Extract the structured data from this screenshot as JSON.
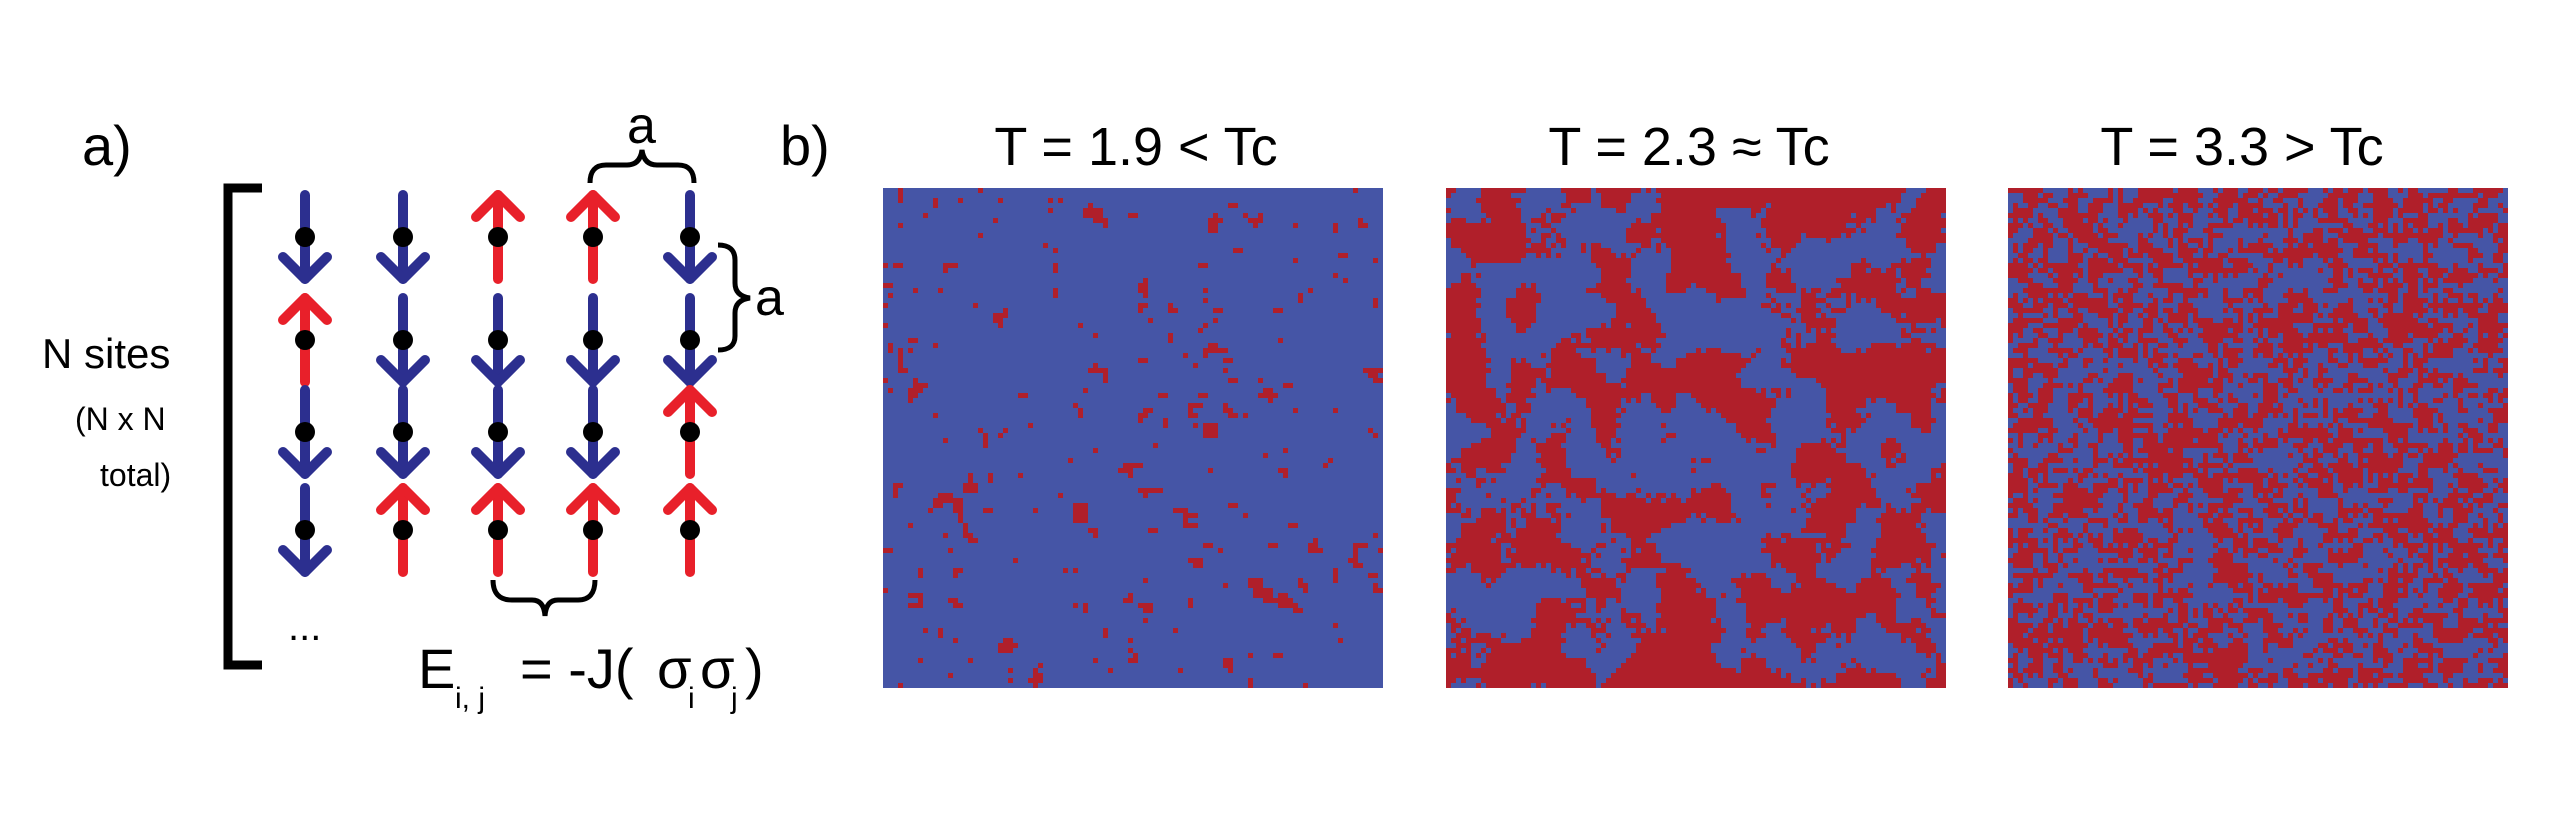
{
  "panel_a": {
    "label": "a)",
    "sites_label": "N sites",
    "total_label_line1": "(N x N",
    "total_label_line2": "total)",
    "ellipsis": "...",
    "spacing_label_top": "a",
    "spacing_label_right": "a",
    "energy": {
      "E": "E",
      "sub_ij": "i, j",
      "prefix": "= -J(",
      "sigma": "σ",
      "sub_i": "i",
      "sub_j": "j",
      "suffix": ")"
    },
    "spin_grid": [
      [
        "down",
        "down",
        "up",
        "up",
        "down"
      ],
      [
        "up",
        "down",
        "down",
        "down",
        "down"
      ],
      [
        "down",
        "down",
        "down",
        "down",
        "up"
      ],
      [
        "down",
        "up",
        "up",
        "up",
        "up"
      ]
    ],
    "colors": {
      "up": "#e8202a",
      "down": "#2c2f8f",
      "site": "#000000"
    }
  },
  "panel_b": {
    "label": "b)",
    "colors": {
      "up": "#b01f2a",
      "down": "#4555a6"
    },
    "lattices": [
      {
        "title": "T = 1.9 < Tc",
        "T": 1.9,
        "up_fraction": 0.05
      },
      {
        "title": "T = 2.3 ≈ Tc",
        "T": 2.3,
        "up_fraction": 0.5
      },
      {
        "title": "T = 3.3 > Tc",
        "T": 3.3,
        "up_fraction": 0.5
      }
    ]
  }
}
